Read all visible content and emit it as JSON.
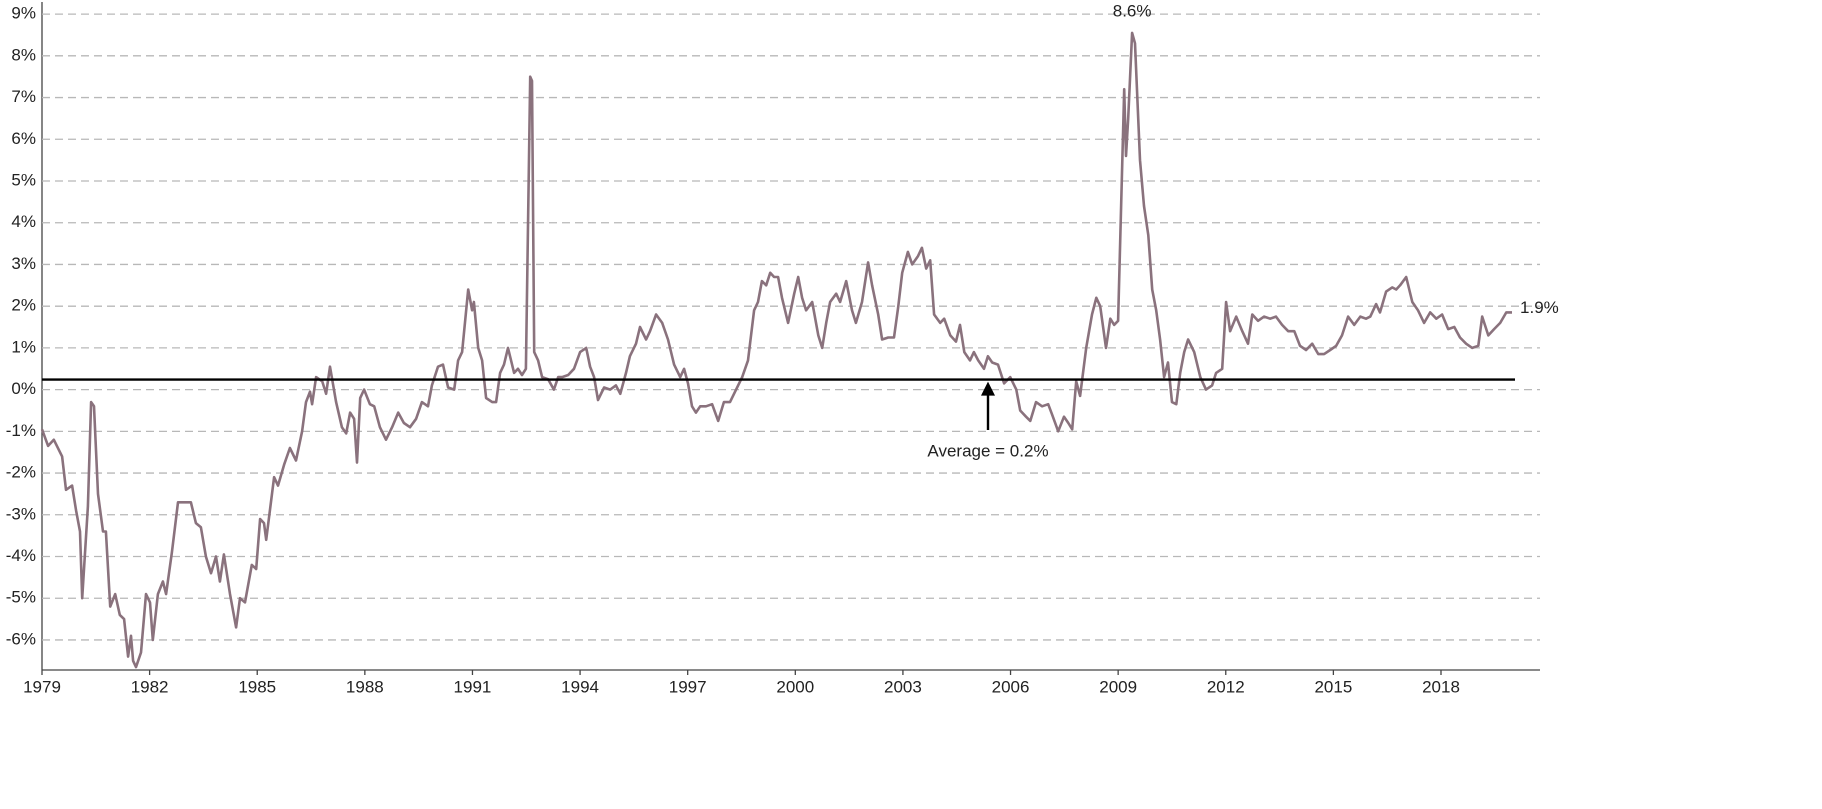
{
  "chart_data": {
    "type": "line",
    "x": [
      1979.0,
      1979.17,
      1979.33,
      1979.56,
      1979.67,
      1979.84,
      1979.95,
      1980.06,
      1980.12,
      1980.28,
      1980.37,
      1980.45,
      1980.56,
      1980.7,
      1980.78,
      1980.9,
      1981.04,
      1981.17,
      1981.29,
      1981.4,
      1981.48,
      1981.54,
      1981.62,
      1981.76,
      1981.9,
      1982.01,
      1982.09,
      1982.23,
      1982.37,
      1982.46,
      1982.62,
      1982.79,
      1982.96,
      1983.15,
      1983.29,
      1983.43,
      1983.57,
      1983.71,
      1983.85,
      1983.96,
      1984.07,
      1984.24,
      1984.41,
      1984.52,
      1984.66,
      1984.85,
      1984.97,
      1985.08,
      1985.19,
      1985.25,
      1985.47,
      1985.58,
      1985.75,
      1985.91,
      1986.08,
      1986.25,
      1986.36,
      1986.47,
      1986.53,
      1986.64,
      1986.81,
      1986.92,
      1987.03,
      1987.2,
      1987.36,
      1987.48,
      1987.59,
      1987.7,
      1987.78,
      1987.87,
      1987.98,
      1988.14,
      1988.26,
      1988.42,
      1988.59,
      1988.76,
      1988.93,
      1989.09,
      1989.26,
      1989.43,
      1989.59,
      1989.76,
      1989.87,
      1990.04,
      1990.18,
      1990.32,
      1990.49,
      1990.6,
      1990.71,
      1990.88,
      1990.99,
      1991.04,
      1991.16,
      1991.27,
      1991.38,
      1991.55,
      1991.66,
      1991.77,
      1991.88,
      1991.99,
      1992.16,
      1992.27,
      1992.38,
      1992.49,
      1992.61,
      1992.66,
      1992.72,
      1992.83,
      1992.94,
      1993.11,
      1993.27,
      1993.39,
      1993.5,
      1993.67,
      1993.83,
      1994.0,
      1994.17,
      1994.28,
      1994.39,
      1994.5,
      1994.67,
      1994.84,
      1995.0,
      1995.12,
      1995.28,
      1995.39,
      1995.56,
      1995.67,
      1995.84,
      1995.95,
      1996.12,
      1996.29,
      1996.45,
      1996.62,
      1996.79,
      1996.9,
      1997.01,
      1997.12,
      1997.23,
      1997.35,
      1997.51,
      1997.68,
      1997.85,
      1998.01,
      1998.18,
      1998.35,
      1998.52,
      1998.68,
      1998.85,
      1998.96,
      1999.07,
      1999.19,
      1999.3,
      1999.41,
      1999.52,
      1999.63,
      1999.8,
      1999.97,
      2000.08,
      2000.19,
      2000.3,
      2000.47,
      2000.64,
      2000.75,
      2000.86,
      2000.97,
      2001.14,
      2001.25,
      2001.42,
      2001.58,
      2001.69,
      2001.86,
      2002.03,
      2002.14,
      2002.31,
      2002.42,
      2002.59,
      2002.75,
      2002.87,
      2002.98,
      2003.14,
      2003.26,
      2003.42,
      2003.53,
      2003.65,
      2003.76,
      2003.87,
      2004.04,
      2004.15,
      2004.32,
      2004.48,
      2004.59,
      2004.71,
      2004.87,
      2004.98,
      2005.1,
      2005.26,
      2005.37,
      2005.49,
      2005.65,
      2005.82,
      2005.99,
      2006.16,
      2006.27,
      2006.43,
      2006.55,
      2006.71,
      2006.88,
      2007.05,
      2007.16,
      2007.33,
      2007.49,
      2007.61,
      2007.72,
      2007.83,
      2007.94,
      2008.11,
      2008.27,
      2008.39,
      2008.5,
      2008.66,
      2008.78,
      2008.89,
      2009.0,
      2009.17,
      2009.22,
      2009.28,
      2009.39,
      2009.47,
      2009.61,
      2009.72,
      2009.84,
      2009.95,
      2010.06,
      2010.17,
      2010.28,
      2010.39,
      2010.5,
      2010.62,
      2010.73,
      2010.84,
      2010.95,
      2011.12,
      2011.29,
      2011.45,
      2011.62,
      2011.73,
      2011.9,
      2012.01,
      2012.12,
      2012.29,
      2012.46,
      2012.62,
      2012.74,
      2012.9,
      2013.07,
      2013.24,
      2013.4,
      2013.57,
      2013.74,
      2013.91,
      2014.07,
      2014.24,
      2014.41,
      2014.58,
      2014.74,
      2014.91,
      2015.08,
      2015.24,
      2015.41,
      2015.58,
      2015.75,
      2015.91,
      2016.03,
      2016.19,
      2016.3,
      2016.47,
      2016.64,
      2016.75,
      2016.86,
      2017.03,
      2017.2,
      2017.36,
      2017.53,
      2017.7,
      2017.87,
      2018.03,
      2018.2,
      2018.37,
      2018.53,
      2018.7,
      2018.87,
      2019.04,
      2019.15,
      2019.32,
      2019.48,
      2019.65,
      2019.82,
      2019.98
    ],
    "values": [
      -0.95,
      -1.35,
      -1.2,
      -1.6,
      -2.4,
      -2.3,
      -2.9,
      -3.4,
      -5.0,
      -2.8,
      -0.3,
      -0.4,
      -2.5,
      -3.4,
      -3.4,
      -5.2,
      -4.9,
      -5.4,
      -5.5,
      -6.4,
      -5.9,
      -6.5,
      -6.65,
      -6.3,
      -4.9,
      -5.1,
      -6.0,
      -4.9,
      -4.6,
      -4.9,
      -3.9,
      -2.7,
      -2.7,
      -2.7,
      -3.2,
      -3.3,
      -4.0,
      -4.4,
      -4.0,
      -4.6,
      -3.95,
      -4.9,
      -5.7,
      -5.0,
      -5.1,
      -4.2,
      -4.3,
      -3.1,
      -3.2,
      -3.6,
      -2.1,
      -2.3,
      -1.8,
      -1.4,
      -1.7,
      -1.0,
      -0.3,
      -0.05,
      -0.35,
      0.3,
      0.2,
      -0.1,
      0.55,
      -0.3,
      -0.9,
      -1.05,
      -0.55,
      -0.7,
      -1.75,
      -0.2,
      0.0,
      -0.35,
      -0.4,
      -0.9,
      -1.2,
      -0.9,
      -0.55,
      -0.8,
      -0.9,
      -0.7,
      -0.3,
      -0.4,
      0.1,
      0.55,
      0.6,
      0.05,
      0.0,
      0.7,
      0.9,
      2.4,
      1.9,
      2.1,
      1.0,
      0.7,
      -0.2,
      -0.3,
      -0.3,
      0.4,
      0.6,
      1.0,
      0.4,
      0.5,
      0.35,
      0.5,
      7.5,
      7.4,
      0.9,
      0.7,
      0.3,
      0.25,
      0.0,
      0.3,
      0.3,
      0.35,
      0.5,
      0.9,
      1.0,
      0.55,
      0.3,
      -0.25,
      0.05,
      0.0,
      0.1,
      -0.1,
      0.4,
      0.8,
      1.1,
      1.5,
      1.2,
      1.4,
      1.8,
      1.6,
      1.2,
      0.6,
      0.3,
      0.5,
      0.15,
      -0.4,
      -0.55,
      -0.4,
      -0.4,
      -0.35,
      -0.75,
      -0.3,
      -0.3,
      0.0,
      0.3,
      0.7,
      1.9,
      2.1,
      2.6,
      2.5,
      2.8,
      2.7,
      2.7,
      2.2,
      1.6,
      2.3,
      2.7,
      2.2,
      1.9,
      2.1,
      1.3,
      1.0,
      1.6,
      2.1,
      2.3,
      2.1,
      2.6,
      1.9,
      1.6,
      2.1,
      3.05,
      2.5,
      1.8,
      1.2,
      1.25,
      1.25,
      2.0,
      2.8,
      3.3,
      3.0,
      3.2,
      3.4,
      2.9,
      3.1,
      1.8,
      1.6,
      1.7,
      1.3,
      1.15,
      1.55,
      0.9,
      0.7,
      0.9,
      0.7,
      0.5,
      0.8,
      0.65,
      0.6,
      0.15,
      0.3,
      0.0,
      -0.5,
      -0.65,
      -0.75,
      -0.3,
      -0.4,
      -0.35,
      -0.6,
      -1.0,
      -0.65,
      -0.8,
      -0.95,
      0.2,
      -0.15,
      1.0,
      1.8,
      2.2,
      2.0,
      1.0,
      1.7,
      1.55,
      1.65,
      7.2,
      5.6,
      6.5,
      8.55,
      8.3,
      5.5,
      4.4,
      3.7,
      2.4,
      1.9,
      1.2,
      0.3,
      0.65,
      -0.3,
      -0.35,
      0.4,
      0.9,
      1.2,
      0.9,
      0.3,
      0.0,
      0.1,
      0.4,
      0.5,
      2.1,
      1.4,
      1.75,
      1.4,
      1.1,
      1.8,
      1.65,
      1.75,
      1.7,
      1.75,
      1.55,
      1.4,
      1.4,
      1.05,
      0.95,
      1.1,
      0.85,
      0.85,
      0.95,
      1.05,
      1.3,
      1.75,
      1.55,
      1.75,
      1.7,
      1.75,
      2.05,
      1.85,
      2.35,
      2.45,
      2.4,
      2.5,
      2.7,
      2.1,
      1.9,
      1.6,
      1.85,
      1.7,
      1.8,
      1.45,
      1.5,
      1.25,
      1.1,
      1.0,
      1.05,
      1.75,
      1.3,
      1.45,
      1.6,
      1.85,
      1.85
    ],
    "color": "#8a727d",
    "average": 0.24,
    "annotations": [
      "8.6%",
      "1.9%",
      "Average = 0.2%"
    ],
    "xlim": [
      1979,
      2020.76
    ],
    "xticks": [
      1979,
      1982,
      1985,
      1988,
      1991,
      1994,
      1997,
      2000,
      2003,
      2006,
      2009,
      2012,
      2015,
      2018
    ],
    "ylim": [
      -6.72,
      9.29
    ],
    "yticks": [
      {
        "value": 9,
        "label": "9%"
      },
      {
        "value": 8,
        "label": "8%"
      },
      {
        "value": 7,
        "label": "7%"
      },
      {
        "value": 6,
        "label": "6%"
      },
      {
        "value": 5,
        "label": "5%"
      },
      {
        "value": 4,
        "label": "4%"
      },
      {
        "value": 3,
        "label": "3%"
      },
      {
        "value": 2,
        "label": "2%"
      },
      {
        "value": 1,
        "label": "1%"
      },
      {
        "value": 0,
        "label": "0%"
      },
      {
        "value": -1,
        "label": "-1%"
      },
      {
        "value": -2,
        "label": "-2%"
      },
      {
        "value": -3,
        "label": "-3%"
      },
      {
        "value": -4,
        "label": "-4%"
      },
      {
        "value": -5,
        "label": "-5%"
      },
      {
        "value": -6,
        "label": "-6%"
      }
    ],
    "grid": true
  }
}
